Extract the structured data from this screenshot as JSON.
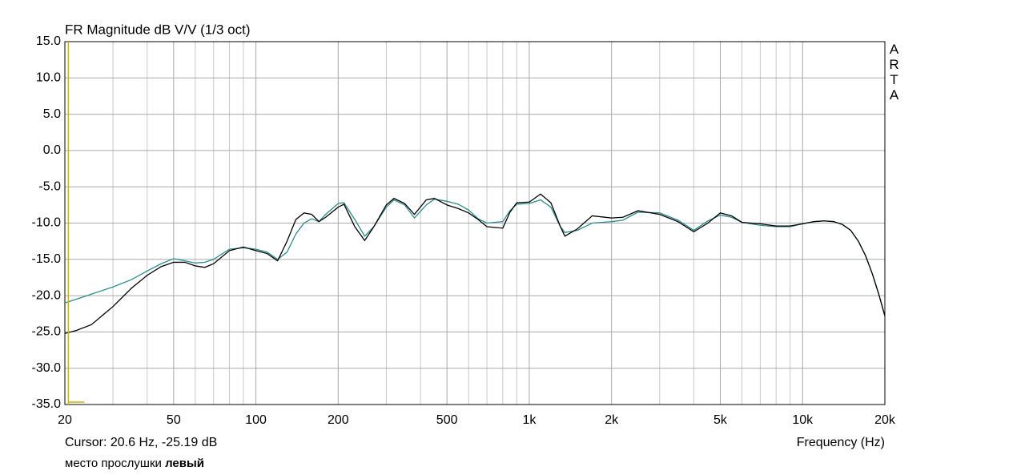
{
  "chart_data": {
    "type": "line",
    "title": "FR Magnitude dB V/V (1/3 oct)",
    "watermark": "ARTA",
    "xlabel": "Frequency (Hz)",
    "cursor": {
      "label": "Cursor: 20.6 Hz, -25.19 dB",
      "x": 20.6,
      "color": "#c8b400"
    },
    "note": {
      "text": "место прослушки",
      "bold": "левый"
    },
    "xscale": "log",
    "grid": true,
    "xlim": [
      20,
      20000
    ],
    "ylim": [
      -35,
      15
    ],
    "xticks": [
      20,
      50,
      100,
      200,
      500,
      {
        "value": 1000,
        "label": "1k"
      },
      {
        "value": 2000,
        "label": "2k"
      },
      {
        "value": 5000,
        "label": "5k"
      },
      {
        "value": 10000,
        "label": "10k"
      },
      {
        "value": 20000,
        "label": "20k"
      }
    ],
    "xminorticks": [
      30,
      40,
      60,
      70,
      80,
      90,
      300,
      400,
      600,
      700,
      800,
      900,
      3000,
      4000,
      6000,
      7000,
      8000,
      9000
    ],
    "yticks": [
      {
        "value": 15,
        "label": "15.0"
      },
      {
        "value": 10,
        "label": "10.0"
      },
      {
        "value": 5,
        "label": "5.0"
      },
      {
        "value": 0,
        "label": "0.0"
      },
      {
        "value": -5,
        "label": "-5.0"
      },
      {
        "value": -10,
        "label": "-10.0"
      },
      {
        "value": -15,
        "label": "-15.0"
      },
      {
        "value": -20,
        "label": "-20.0"
      },
      {
        "value": -25,
        "label": "-25.0"
      },
      {
        "value": -30,
        "label": "-30.0"
      },
      {
        "value": -35,
        "label": "-35.0"
      }
    ],
    "x": [
      20,
      22,
      25,
      30,
      35,
      40,
      45,
      50,
      55,
      60,
      65,
      70,
      80,
      90,
      100,
      110,
      120,
      130,
      140,
      150,
      160,
      170,
      180,
      200,
      210,
      230,
      250,
      270,
      300,
      320,
      350,
      380,
      420,
      450,
      500,
      550,
      600,
      650,
      700,
      800,
      850,
      900,
      1000,
      1100,
      1200,
      1300,
      1350,
      1500,
      1700,
      2000,
      2200,
      2500,
      3000,
      3500,
      4000,
      4500,
      5000,
      5500,
      6000,
      7000,
      8000,
      9000,
      10000,
      11000,
      12000,
      13000,
      14000,
      15000,
      16000,
      17000,
      18000,
      19000,
      20000
    ],
    "series": [
      {
        "color": "#000000",
        "values": [
          -25.2,
          -24.8,
          -24.0,
          -21.5,
          -19.0,
          -17.2,
          -16.0,
          -15.4,
          -15.4,
          -15.9,
          -16.1,
          -15.6,
          -13.8,
          -13.3,
          -13.8,
          -14.2,
          -15.2,
          -12.5,
          -9.5,
          -8.6,
          -8.8,
          -9.8,
          -9.2,
          -7.8,
          -7.4,
          -10.5,
          -12.4,
          -10.5,
          -7.5,
          -6.6,
          -7.3,
          -8.8,
          -6.8,
          -6.6,
          -7.5,
          -8.0,
          -8.6,
          -9.5,
          -10.5,
          -10.7,
          -8.5,
          -7.2,
          -7.1,
          -6.0,
          -7.2,
          -10.5,
          -11.8,
          -10.8,
          -9.0,
          -9.3,
          -9.2,
          -8.3,
          -8.8,
          -9.8,
          -11.2,
          -10.0,
          -8.6,
          -9.0,
          -9.9,
          -10.1,
          -10.4,
          -10.4,
          -10.1,
          -9.8,
          -9.7,
          -9.8,
          -10.2,
          -11.0,
          -12.5,
          -14.5,
          -17.0,
          -19.8,
          -22.8
        ]
      },
      {
        "color": "#2e8b8b",
        "values": [
          -21.0,
          -20.5,
          -19.8,
          -18.8,
          -17.8,
          -16.6,
          -15.6,
          -14.9,
          -15.2,
          -15.5,
          -15.4,
          -15.0,
          -13.6,
          -13.4,
          -13.6,
          -14.0,
          -15.0,
          -14.0,
          -11.5,
          -10.0,
          -9.4,
          -9.8,
          -8.8,
          -7.3,
          -7.2,
          -9.5,
          -11.8,
          -10.5,
          -7.8,
          -6.8,
          -7.5,
          -9.3,
          -7.5,
          -6.7,
          -7.0,
          -7.4,
          -8.2,
          -9.4,
          -10.0,
          -9.8,
          -8.3,
          -7.4,
          -7.3,
          -6.8,
          -7.8,
          -10.5,
          -11.3,
          -11.0,
          -10.0,
          -9.8,
          -9.6,
          -8.5,
          -8.6,
          -9.6,
          -11.0,
          -9.7,
          -8.9,
          -9.2,
          -9.9,
          -10.3,
          -10.5,
          -10.5,
          -10.1,
          -9.8,
          -9.7,
          -9.8,
          -10.2,
          -11.0,
          -12.5,
          -14.5,
          -17.0,
          -19.8,
          -22.8
        ]
      }
    ]
  }
}
